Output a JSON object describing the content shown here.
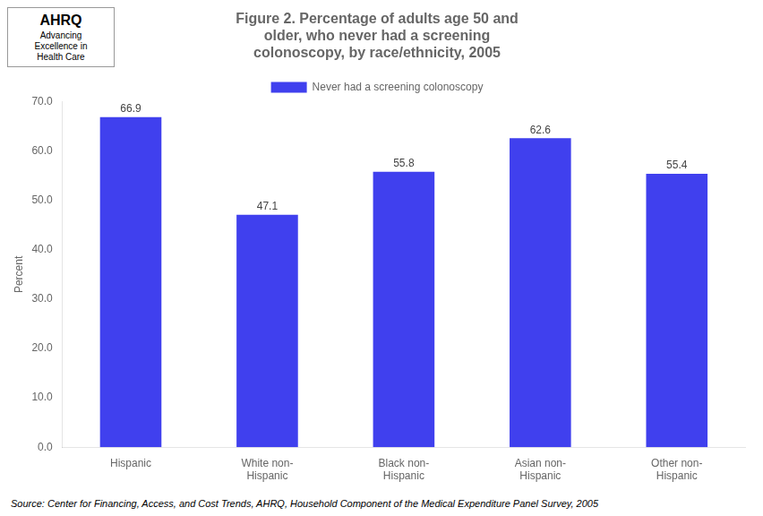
{
  "chart_data": {
    "type": "bar",
    "title": "Figure 2. Percentage of adults age 50 and\nolder, who never had a screening\ncolonoscopy, by race/ethnicity, 2005",
    "categories": [
      "Hispanic",
      "White non-\nHispanic",
      "Black non-\nHispanic",
      "Asian non-\nHispanic",
      "Other non-\nHispanic"
    ],
    "series": [
      {
        "name": "Never had a screening colonoscopy",
        "color": "#4040EE",
        "values": [
          66.9,
          47.1,
          55.8,
          62.6,
          55.4
        ]
      }
    ],
    "ylabel": "Percent",
    "ylim": [
      0,
      70
    ],
    "yticks": [
      {
        "value": 0,
        "label": "0.0"
      },
      {
        "value": 10,
        "label": "10.0"
      },
      {
        "value": 20,
        "label": "20.0"
      },
      {
        "value": 30,
        "label": "30.0"
      },
      {
        "value": 40,
        "label": "40.0"
      },
      {
        "value": 50,
        "label": "50.0"
      },
      {
        "value": 60,
        "label": "60.0"
      },
      {
        "value": 70,
        "label": "70.0"
      }
    ],
    "grid": false,
    "legend": "top",
    "data_labels": true,
    "annotations": [
      "AHRQ",
      "Advancing\nExcellence in\nHealth Care",
      "Source: Center for Financing, Access, and Cost Trends, AHRQ, Household Component of the Medical Expenditure Panel Survey, 2005"
    ]
  }
}
